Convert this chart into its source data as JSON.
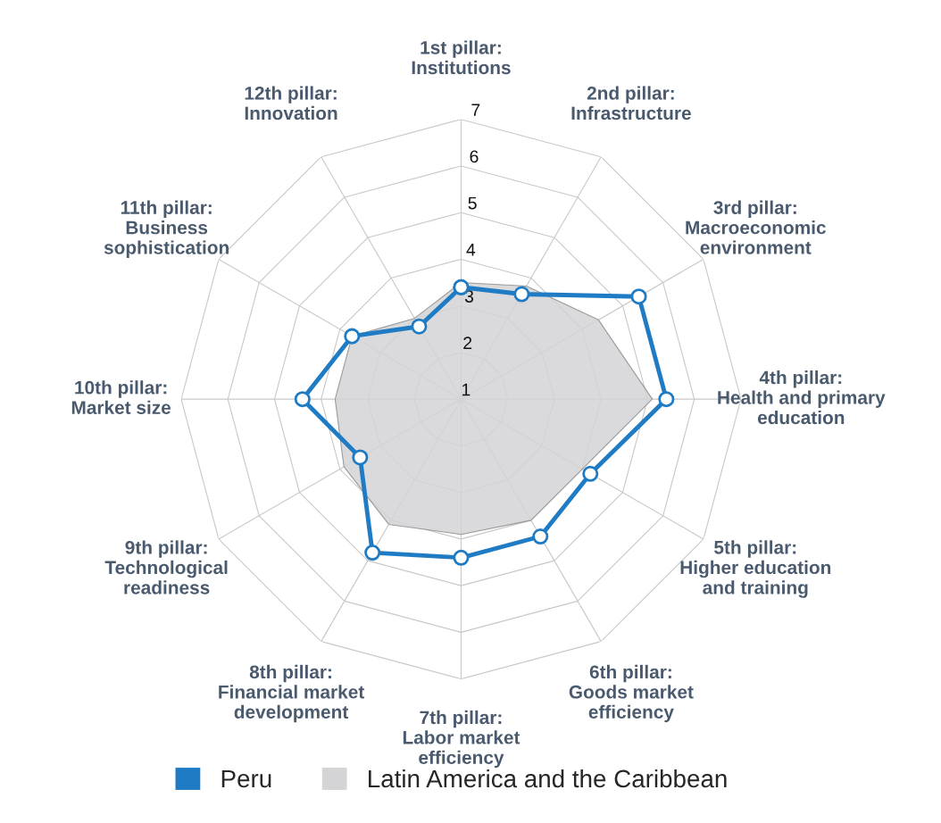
{
  "chart_data": {
    "type": "radar",
    "categories": [
      "1st pillar:\nInstitutions",
      "2nd pillar:\nInfrastructure",
      "3rd pillar:\nMacroeconomic\nenvironment",
      "4th pillar:\nHealth and primary\neducation",
      "5th pillar:\nHigher education\nand training",
      "6th pillar:\nGoods market\nefficiency",
      "7th pillar:\nLabor market\nefficiency",
      "8th pillar:\nFinancial market\ndevelopment",
      "9th pillar:\nTechnological\nreadiness",
      "10th pillar:\nMarket size",
      "11th pillar:\nBusiness\nsophistication",
      "12th pillar:\nInnovation"
    ],
    "series": [
      {
        "name": "Latin America and the Caribbean",
        "color": "#d4d4d6",
        "type": "area",
        "marker": "none",
        "values": [
          3.5,
          3.8,
          4.4,
          5.1,
          4.0,
          4.0,
          3.9,
          4.1,
          3.9,
          3.7,
          3.7,
          3.0
        ]
      },
      {
        "name": "Peru",
        "color": "#1f7cc4",
        "values": [
          3.4,
          3.6,
          5.4,
          5.4,
          4.2,
          4.4,
          4.4,
          4.8,
          3.5,
          4.4,
          3.7,
          2.8
        ]
      }
    ],
    "ylim": [
      1,
      7
    ],
    "yticks": [
      1,
      2,
      3,
      4,
      5,
      6,
      7
    ],
    "grid": true,
    "legend": "bottom",
    "marker": "circle"
  }
}
